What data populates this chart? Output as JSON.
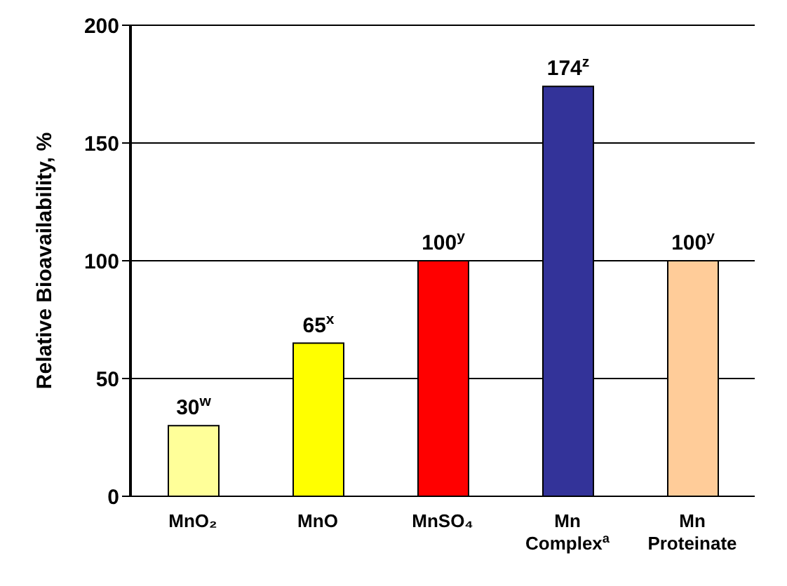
{
  "chart_data": {
    "type": "bar",
    "ylabel": "Relative Bioavailability, %",
    "categories": [
      "MnO₂",
      "MnO",
      "MnSO₄",
      "Mn Complex$^{a}$",
      "Mn Proteinate"
    ],
    "values": [
      30,
      65,
      100,
      174,
      100
    ],
    "colors": [
      "#ffff99",
      "#ffff00",
      "#ff0000",
      "#333399",
      "#ffcc99"
    ],
    "value_labels": [
      "30$^{w}$",
      "65$^{x}$",
      "100$^{y}$",
      "174$^{z}$",
      "100$^{y}$"
    ],
    "ylim": [
      0,
      200
    ],
    "yticks": [
      0,
      50,
      100,
      150,
      200
    ],
    "grid": "y"
  }
}
